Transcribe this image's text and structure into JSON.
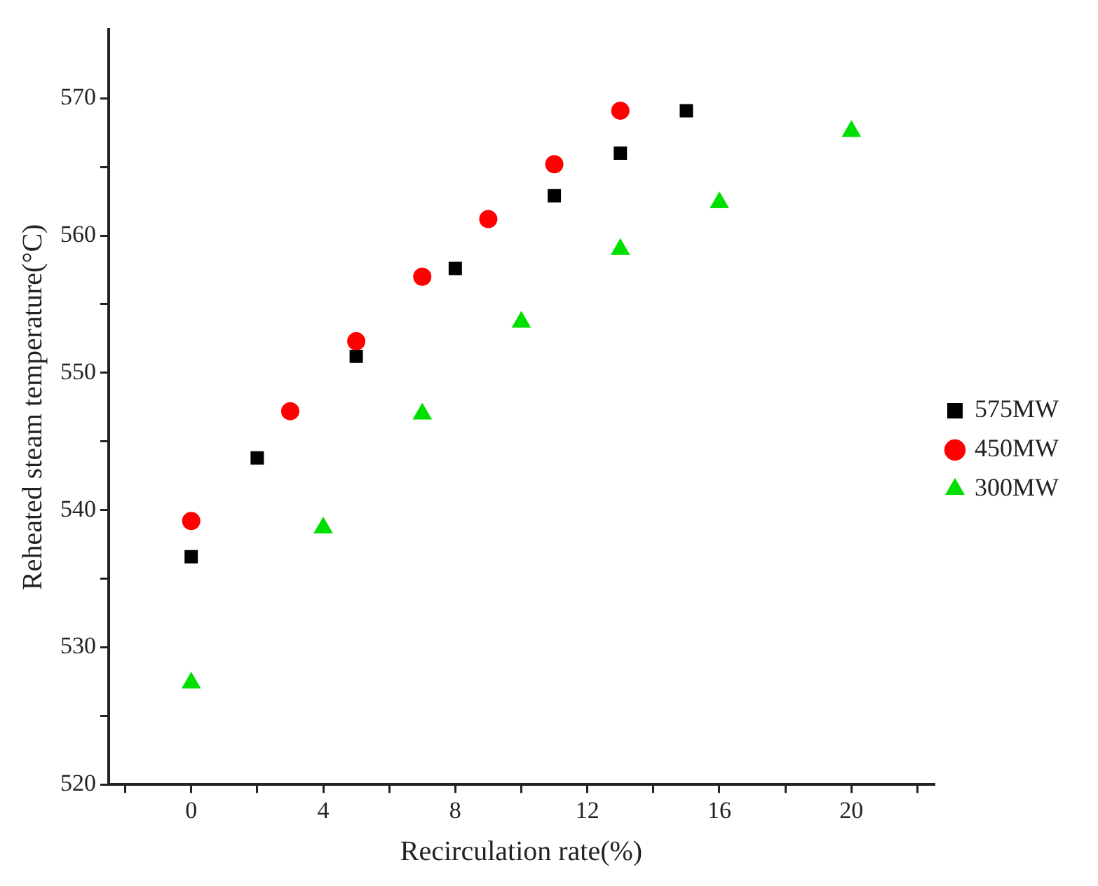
{
  "chart_data": {
    "type": "scatter",
    "xlabel": "Recirculation rate(%)",
    "ylabel": "Reheated steam temperature(°C)",
    "xlim": [
      -2.5,
      22.5
    ],
    "xticks": [
      {
        "value": -2,
        "label": null
      },
      0,
      {
        "value": 2,
        "label": null
      },
      4,
      {
        "value": 6,
        "label": null
      },
      8,
      {
        "value": 10,
        "label": null
      },
      12,
      {
        "value": 14,
        "label": null
      },
      16,
      {
        "value": 18,
        "label": null
      },
      20,
      {
        "value": 22,
        "label": null
      }
    ],
    "ylim": [
      520,
      575
    ],
    "yticks": [
      520,
      {
        "value": 525,
        "label": null
      },
      530,
      {
        "value": 535,
        "label": null
      },
      540,
      {
        "value": 545,
        "label": null
      },
      550,
      {
        "value": 555,
        "label": null
      },
      560,
      {
        "value": 565,
        "label": null
      },
      570
    ],
    "grid": false,
    "legend": "right",
    "series": [
      {
        "name": "575MW",
        "color": "#000000",
        "marker": "square",
        "x": [
          0,
          2,
          5,
          8,
          11,
          13,
          15
        ],
        "values": [
          536.6,
          543.8,
          551.2,
          557.6,
          562.9,
          566.0,
          569.1
        ]
      },
      {
        "name": "450MW",
        "color": "#ff0000",
        "marker": "circle",
        "x": [
          0,
          3,
          5,
          7,
          9,
          11,
          13
        ],
        "values": [
          539.2,
          547.2,
          552.3,
          557.0,
          561.2,
          565.2,
          569.1
        ]
      },
      {
        "name": "300MW",
        "color": "#00e000",
        "marker": "triangle",
        "x": [
          0,
          4,
          7,
          10,
          13,
          16,
          20
        ],
        "values": [
          527.4,
          538.7,
          547.0,
          553.7,
          559.0,
          562.4,
          567.6
        ]
      }
    ]
  }
}
